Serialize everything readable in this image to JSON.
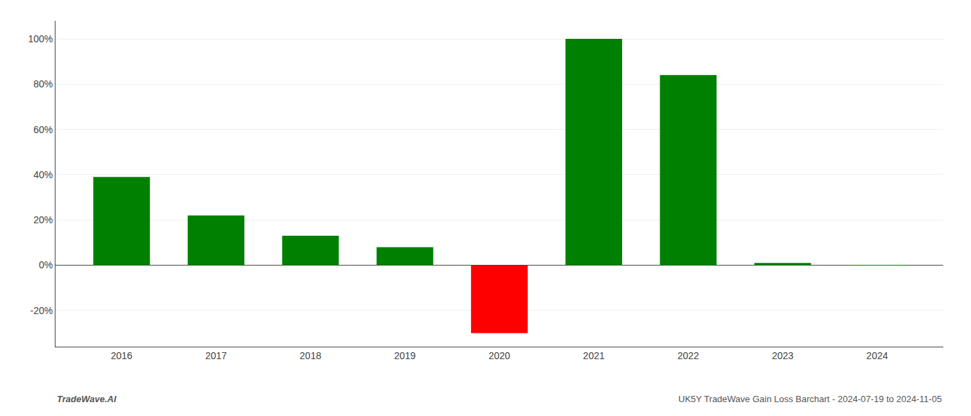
{
  "chart_data": {
    "type": "bar",
    "categories": [
      "2016",
      "2017",
      "2018",
      "2019",
      "2020",
      "2021",
      "2022",
      "2023",
      "2024"
    ],
    "values": [
      0.39,
      0.22,
      0.13,
      0.08,
      -0.3,
      1.0,
      0.84,
      0.01,
      0.0005
    ],
    "colors": [
      "#008000",
      "#008000",
      "#008000",
      "#008000",
      "#ff0000",
      "#008000",
      "#008000",
      "#008000",
      "#008000"
    ],
    "ylim": [
      -0.36,
      1.08
    ],
    "yticks": [
      {
        "value": -0.2,
        "label": "-20%"
      },
      {
        "value": 0.0,
        "label": "0%"
      },
      {
        "value": 0.2,
        "label": "20%"
      },
      {
        "value": 0.4,
        "label": "40%"
      },
      {
        "value": 0.6,
        "label": "60%"
      },
      {
        "value": 0.8,
        "label": "80%"
      },
      {
        "value": 1.0,
        "label": "100%"
      }
    ],
    "grid": true,
    "annotations": [
      "TradeWave.AI",
      "UK5Y TradeWave Gain Loss Barchart - 2024-07-19 to 2024-11-05"
    ]
  }
}
